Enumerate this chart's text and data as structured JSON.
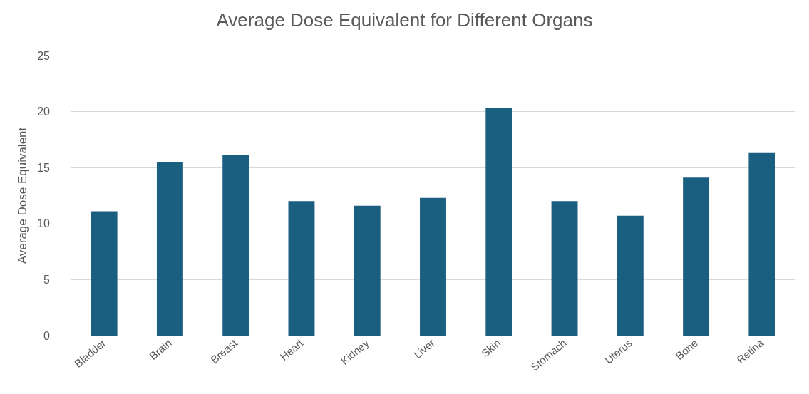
{
  "chart_data": {
    "type": "bar",
    "title": "Average Dose Equivalent for Different Organs",
    "ylabel": "Average Dose Equivalent",
    "categories": [
      "Bladder",
      "Brain",
      "Breast",
      "Heart",
      "Kidney",
      "Liver",
      "Skin",
      "Stomach",
      "Uterus",
      "Bone",
      "Retina"
    ],
    "values": [
      11.1,
      15.5,
      16.1,
      12.0,
      11.6,
      12.3,
      20.3,
      12.0,
      10.7,
      14.1,
      16.3
    ],
    "color": "#1a5e80",
    "ylim": [
      0,
      25
    ],
    "yticks": [
      0,
      5,
      10,
      15,
      20,
      25
    ],
    "grid": "y"
  }
}
